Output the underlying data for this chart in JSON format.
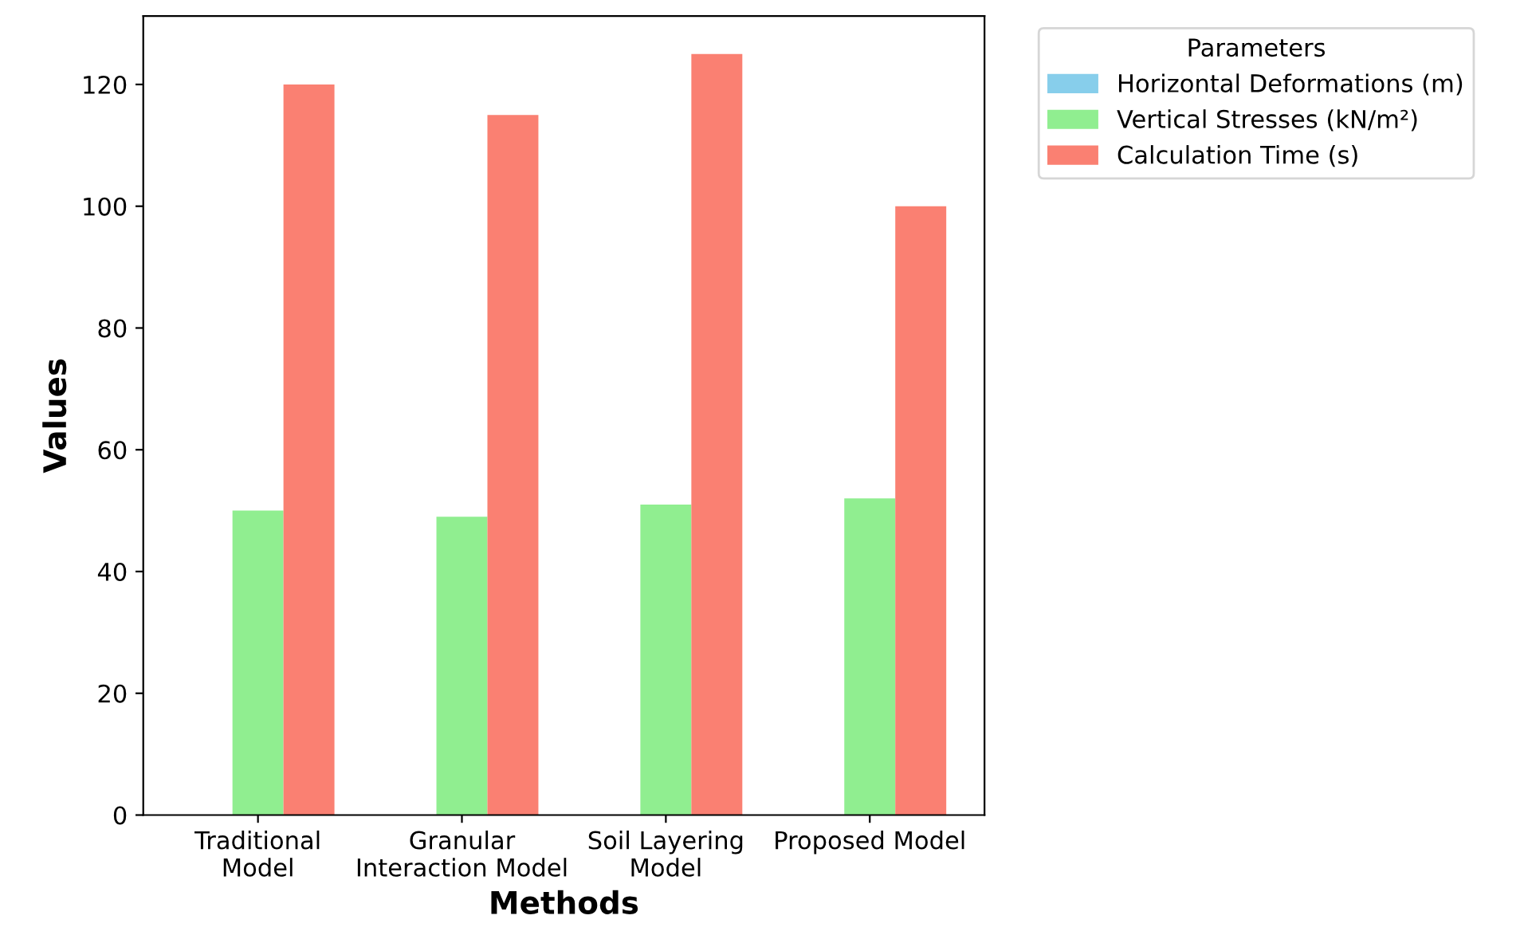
{
  "chart_data": {
    "type": "bar",
    "xlabel": "Methods",
    "ylabel": "Values",
    "legend_title": "Parameters",
    "categories": [
      "Traditional\nModel",
      "Granular\nInteraction Model",
      "Soil Layering\nModel",
      "Proposed Model"
    ],
    "series": [
      {
        "name": "Horizontal Deformations (m)",
        "color": "#87ceeb",
        "values": [
          null,
          null,
          null,
          null
        ]
      },
      {
        "name": "Vertical Stresses (kN/m²)",
        "color": "#90ee90",
        "values": [
          50,
          49,
          51,
          52
        ]
      },
      {
        "name": "Calculation Time (s)",
        "color": "#fa8072",
        "values": [
          120,
          115,
          125,
          100
        ]
      }
    ],
    "ylim": [
      0,
      131.25
    ],
    "yticks": [
      0,
      20,
      40,
      60,
      80,
      100,
      120
    ],
    "grid": false,
    "legend": "top right"
  }
}
